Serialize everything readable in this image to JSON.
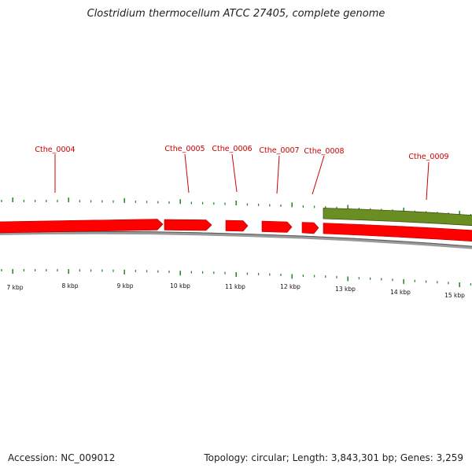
{
  "title": "Clostridium thermocellum ATCC 27405, complete genome",
  "footer": {
    "accession": "Accession: NC_009012",
    "summary": "Topology: circular; Length: 3,843,301 bp; Genes: 3,259"
  },
  "colors": {
    "forward_gene": "#ff0000",
    "reverse_gene": "#6b8e23",
    "backbone": "#808080",
    "tick": "#2e8b2e",
    "label": "#cc0000"
  },
  "scale": {
    "kbp_labels": [
      "7 kbp",
      "8 kbp",
      "9 kbp",
      "10 kbp",
      "11 kbp",
      "12 kbp",
      "13 kbp",
      "14 kbp",
      "15 kbp"
    ]
  },
  "gene_labels": [
    "Cthe_0004",
    "Cthe_0005",
    "Cthe_0006",
    "Cthe_0007",
    "Cthe_0008",
    "Cthe_0009"
  ]
}
